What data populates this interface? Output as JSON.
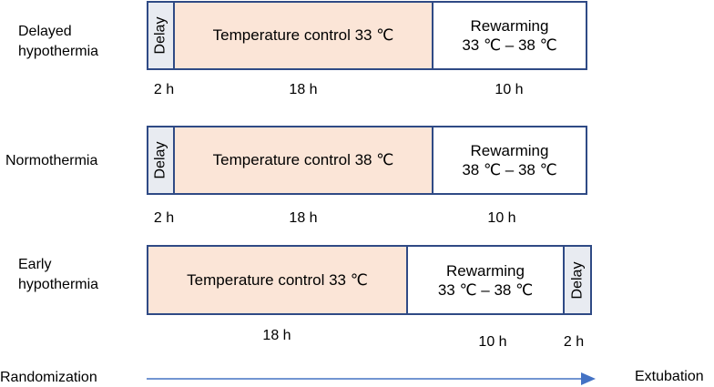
{
  "groups": [
    {
      "label_lines": [
        "Delayed",
        "hypothermia"
      ],
      "delay_label": "Delay",
      "temperature_label": "Temperature control 33 ℃",
      "rewarming_title": "Rewarming",
      "rewarming_range": "33 ℃ – 38 ℃",
      "durations": {
        "delay": "2 h",
        "temperature": "18 h",
        "rewarming": "10 h"
      }
    },
    {
      "label_lines": [
        "Normothermia"
      ],
      "delay_label": "Delay",
      "temperature_label": "Temperature control 38 ℃",
      "rewarming_title": "Rewarming",
      "rewarming_range": "38 ℃ – 38 ℃",
      "durations": {
        "delay": "2 h",
        "temperature": "18 h",
        "rewarming": "10 h"
      }
    },
    {
      "label_lines": [
        "Early",
        "hypothermia"
      ],
      "delay_label": "Delay",
      "temperature_label": "Temperature control 33 ℃",
      "rewarming_title": "Rewarming",
      "rewarming_range": "33 ℃ – 38 ℃",
      "durations": {
        "temperature": "18 h",
        "rewarming": "10 h",
        "delay": "2 h"
      }
    }
  ],
  "timeline": {
    "start_label": "Randomization",
    "end_label": "Extubation",
    "arrow_color": "#4472c4"
  },
  "colors": {
    "border": "#2f4a85",
    "delay_fill": "#e8ebf1",
    "temperature_fill": "#fbe5d7",
    "rewarming_fill": "#ffffff"
  }
}
